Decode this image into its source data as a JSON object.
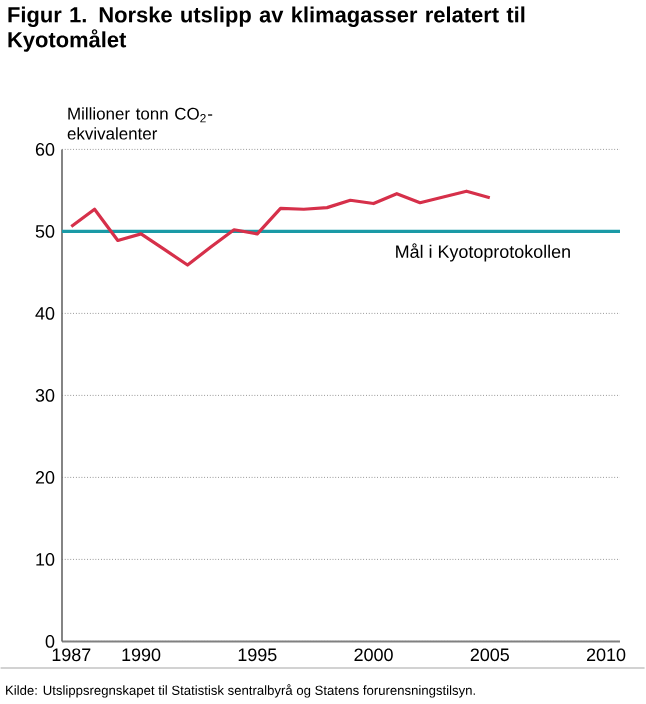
{
  "chart_data": {
    "type": "line",
    "title": "Figur 1. Norske utslipp av klimagasser relatert til Kyotomålet",
    "ylabel": "Millioner tonn CO$_{2}$-ekvivalenter",
    "x": [
      1987,
      1988,
      1989,
      1990,
      1991,
      1992,
      1993,
      1994,
      1995,
      1996,
      1997,
      1998,
      1999,
      2000,
      2001,
      2002,
      2003,
      2004,
      2005
    ],
    "series": [
      {
        "color": "#d6304a",
        "values": [
          50.6,
          52.7,
          48.9,
          49.7,
          47.8,
          45.9,
          48.1,
          50.2,
          49.7,
          52.8,
          52.7,
          52.9,
          53.8,
          53.4,
          54.6,
          53.5,
          54.2,
          54.9,
          54.1
        ]
      }
    ],
    "xlim": [
      1986.6,
      2010.6
    ],
    "xticks": [
      1987,
      1990,
      1995,
      2000,
      2005,
      2010
    ],
    "ylim": [
      0,
      60
    ],
    "yticks": [
      0,
      10,
      20,
      30,
      40,
      50,
      60
    ],
    "grid": "y",
    "marker": "none",
    "line_style": "solid",
    "ref_lines": [
      {
        "axis": "y",
        "value": 50,
        "label": "Mål i Kyotoprotokollen",
        "color": "#1a9aa6"
      }
    ],
    "annotations": [
      "Kilde: Utslippsregnskapet til Statistisk sentralbyrå og Statens forurensningstilsyn."
    ]
  }
}
